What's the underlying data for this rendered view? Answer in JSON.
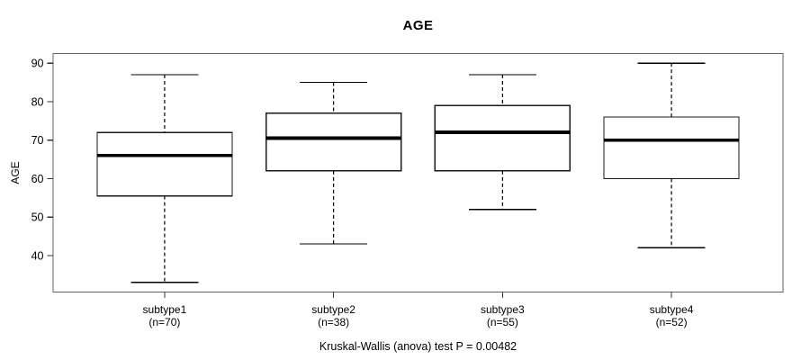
{
  "figure": {
    "background": "#ffffff"
  },
  "chart_data": {
    "type": "boxplot",
    "title": "AGE",
    "ylabel": "AGE",
    "xlabel": "",
    "caption": "Kruskal-Wallis (anova) test P = 0.00482",
    "ylim": [
      30.5,
      92.5
    ],
    "yticks": [
      40,
      50,
      60,
      70,
      80,
      90
    ],
    "grid": false,
    "legend": null,
    "categories": [
      "subtype1",
      "subtype2",
      "subtype3",
      "subtype4"
    ],
    "category_sublabels": [
      "(n=70)",
      "(n=38)",
      "(n=55)",
      "(n=52)"
    ],
    "series": [
      {
        "name": "subtype1",
        "n": 70,
        "whisker_low": 33,
        "q1": 55.5,
        "median": 66,
        "q3": 72,
        "whisker_high": 87
      },
      {
        "name": "subtype2",
        "n": 38,
        "whisker_low": 43,
        "q1": 62,
        "median": 70.5,
        "q3": 77,
        "whisker_high": 85
      },
      {
        "name": "subtype3",
        "n": 55,
        "whisker_low": 52,
        "q1": 62,
        "median": 72,
        "q3": 79,
        "whisker_high": 87
      },
      {
        "name": "subtype4",
        "n": 52,
        "whisker_low": 42,
        "q1": 60,
        "median": 70,
        "q3": 76,
        "whisker_high": 90
      }
    ],
    "colors": {
      "box_fill": "#ffffff",
      "box_line": "#1a1a1a",
      "median_line": "#000000",
      "whisker_line": "#000000",
      "frame": "#606060",
      "tick": "#333333",
      "text": "#000000",
      "background": "#ffffff"
    }
  }
}
